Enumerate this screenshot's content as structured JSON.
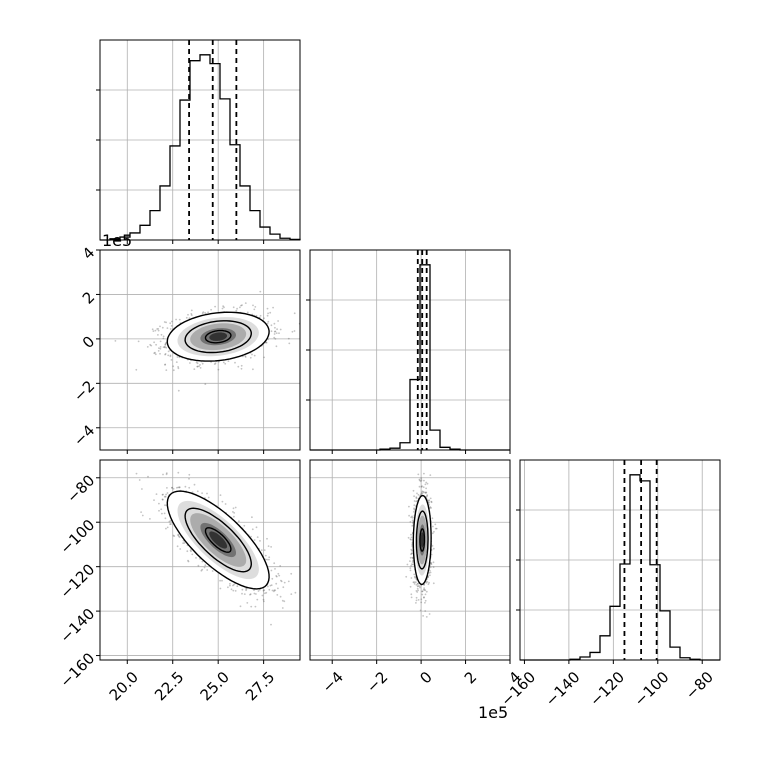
{
  "chart_data": {
    "type": "corner",
    "x_offset_label": "1e5",
    "y_offset_label": "1e5",
    "parameters": [
      {
        "range": [
          18.5,
          29.5
        ],
        "ticks": [
          20.0,
          22.5,
          25.0,
          27.5
        ],
        "tick_labels": [
          "20.0",
          "22.5",
          "25.0",
          "27.5"
        ]
      },
      {
        "range": [
          -5.0,
          4.0
        ],
        "ticks": [
          -4,
          -2,
          0,
          2,
          4
        ],
        "tick_labels": [
          "−4",
          "−2",
          "0",
          "2",
          "4"
        ]
      },
      {
        "range": [
          -162,
          -72
        ],
        "ticks": [
          -160,
          -140,
          -120,
          -100,
          -80
        ],
        "tick_labels": [
          "−160",
          "−140",
          "−120",
          "−100",
          "−80"
        ]
      }
    ],
    "histograms": [
      {
        "bin_edges": [
          18.5,
          19.05,
          19.6,
          20.15,
          20.7,
          21.25,
          21.8,
          22.35,
          22.9,
          23.45,
          24.0,
          24.55,
          25.1,
          25.65,
          26.2,
          26.75,
          27.3,
          27.85,
          28.4,
          28.95,
          29.5
        ],
        "counts": [
          0,
          2,
          5,
          12,
          25,
          50,
          92,
          160,
          238,
          305,
          315,
          300,
          240,
          162,
          92,
          50,
          22,
          10,
          3,
          1
        ],
        "quantiles": [
          23.4,
          24.7,
          26.0
        ]
      },
      {
        "bin_edges": [
          -5.0,
          -4.55,
          -4.1,
          -3.65,
          -3.2,
          -2.75,
          -2.3,
          -1.85,
          -1.4,
          -0.95,
          -0.5,
          -0.05,
          0.4,
          0.85,
          1.3,
          1.75,
          2.2,
          2.65,
          3.1,
          3.55,
          4.0
        ],
        "counts": [
          0,
          0,
          0,
          0,
          0,
          0,
          0,
          1,
          2,
          8,
          78,
          205,
          22,
          3,
          1,
          0,
          0,
          0,
          0,
          0
        ],
        "quantiles": [
          -0.15,
          0.05,
          0.25
        ]
      },
      {
        "bin_edges": [
          -162,
          -157.5,
          -153,
          -148.5,
          -144,
          -139.5,
          -135,
          -130.5,
          -126,
          -121.5,
          -117,
          -112.5,
          -108,
          -103.5,
          -99,
          -94.5,
          -90,
          -85.5,
          -81,
          -76.5,
          -72
        ],
        "counts": [
          0,
          0,
          0,
          0,
          0,
          1,
          4,
          10,
          32,
          71,
          127,
          245,
          237,
          126,
          65,
          17,
          3,
          1,
          0,
          0
        ],
        "quantiles": [
          -115.0,
          -107.5,
          -100.5
        ]
      }
    ],
    "pairs": [
      {
        "x": 0,
        "y": 1,
        "mean": [
          25.0,
          0.1
        ],
        "sd": [
          1.4,
          0.55
        ],
        "corr": 0.2,
        "contour_levels": [
          0.5,
          1.3,
          2.0
        ]
      },
      {
        "x": 0,
        "y": 2,
        "mean": [
          25.0,
          -108
        ],
        "sd": [
          1.4,
          11
        ],
        "corr": -0.75,
        "contour_levels": [
          0.5,
          1.3,
          2.0
        ]
      },
      {
        "x": 1,
        "y": 2,
        "mean": [
          0.05,
          -108
        ],
        "sd": [
          0.2,
          10
        ],
        "corr": 0.05,
        "contour_levels": [
          0.5,
          1.3,
          2.0
        ]
      }
    ],
    "colors": {
      "hist": "#000000",
      "points": "#555555",
      "contour": "#000000",
      "contour_fill": "#ffffff",
      "grid": "#b0b0b0"
    },
    "grid": true,
    "quantile_line_style": "dashed"
  }
}
